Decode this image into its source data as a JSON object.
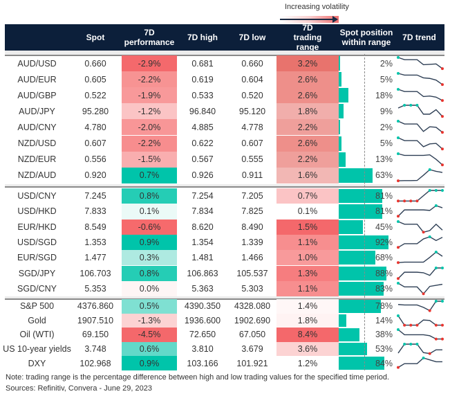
{
  "legend": {
    "label": "Increasing volatility"
  },
  "colors": {
    "header_bg": "#0c1f3a",
    "bar": "#00c4aa",
    "trend_line": "#2e3f55",
    "max_marker": "#00c4aa",
    "min_marker": "#e8352f"
  },
  "columns": [
    "",
    "Spot",
    "7D performance",
    "7D high",
    "7D low",
    "7D trading range",
    "Spot position within range",
    "7D trend"
  ],
  "groups": [
    {
      "rows": [
        {
          "name": "AUD/USD",
          "spot": "0.660",
          "perf": "-2.9%",
          "perf_color": "#f4696c",
          "high": "0.681",
          "low": "0.660",
          "range": "3.2%",
          "range_color": "#e8736d",
          "position": 2,
          "trend": [
            1,
            0.8,
            0.8,
            0.8,
            0.35,
            0.38,
            0.42,
            0
          ]
        },
        {
          "name": "AUD/EUR",
          "spot": "0.605",
          "perf": "-2.2%",
          "perf_color": "#f79393",
          "high": "0.619",
          "low": "0.604",
          "range": "2.6%",
          "range_color": "#ee8f8a",
          "position": 5,
          "trend": [
            1,
            0.85,
            0.85,
            0.85,
            0.6,
            0.55,
            0.4,
            0
          ]
        },
        {
          "name": "AUD/GBP",
          "spot": "0.522",
          "perf": "-1.9%",
          "perf_color": "#f8999a",
          "high": "0.533",
          "low": "0.520",
          "range": "2.6%",
          "range_color": "#ee8f8a",
          "position": 18,
          "trend": [
            1,
            0.8,
            0.8,
            0.8,
            0.35,
            0.4,
            0.3,
            0
          ]
        },
        {
          "name": "AUD/JPY",
          "spot": "95.280",
          "perf": "-1.2%",
          "perf_color": "#fbc4c5",
          "high": "96.840",
          "low": "95.120",
          "range": "1.8%",
          "range_color": "#f1aeab",
          "position": 9,
          "trend": [
            0.75,
            1,
            1,
            1,
            0.2,
            0.2,
            0.6,
            0
          ]
        },
        {
          "name": "AUD/CNY",
          "spot": "4.780",
          "perf": "-2.0%",
          "perf_color": "#f89697",
          "high": "4.885",
          "low": "4.778",
          "range": "2.2%",
          "range_color": "#ef9f9b",
          "position": 2,
          "trend": [
            1,
            0.75,
            0.75,
            0.75,
            0.08,
            0.5,
            0.45,
            0
          ]
        },
        {
          "name": "NZD/USD",
          "spot": "0.607",
          "perf": "-2.2%",
          "perf_color": "#f78d8e",
          "high": "0.622",
          "low": "0.607",
          "range": "2.6%",
          "range_color": "#ee8f8a",
          "position": 5,
          "trend": [
            1,
            0.75,
            0.75,
            0.75,
            0.2,
            0.45,
            0.5,
            0
          ]
        },
        {
          "name": "NZD/EUR",
          "spot": "0.556",
          "perf": "-1.5%",
          "perf_color": "#f9aeaf",
          "high": "0.567",
          "low": "0.555",
          "range": "2.2%",
          "range_color": "#ef9f9b",
          "position": 13,
          "trend": [
            1,
            0.85,
            0.85,
            0.85,
            0.85,
            0.9,
            0.5,
            0
          ]
        },
        {
          "name": "NZD/AUD",
          "spot": "0.920",
          "perf": "0.7%",
          "perf_color": "#00c4aa",
          "high": "0.926",
          "low": "0.911",
          "range": "1.6%",
          "range_color": "#f2b7b4",
          "position": 63,
          "trend": [
            0,
            0.02,
            0.02,
            0.03,
            0.5,
            1,
            0.85,
            0.75
          ]
        }
      ]
    },
    {
      "rows": [
        {
          "name": "USD/CNY",
          "spot": "7.245",
          "perf": "0.8%",
          "perf_color": "#25cdb5",
          "high": "7.254",
          "low": "7.205",
          "range": "0.7%",
          "range_color": "#fbc4c5",
          "position": 81,
          "trend": [
            0,
            0,
            0,
            0,
            0.5,
            1,
            1,
            1
          ]
        },
        {
          "name": "USD/HKD",
          "spot": "7.833",
          "perf": "0.1%",
          "perf_color": "#ebfaf7",
          "high": "7.834",
          "low": "7.825",
          "range": "0.1%",
          "range_color": "#ffffff",
          "position": 81,
          "trend": [
            0,
            0.6,
            0.6,
            0.6,
            0.6,
            0.55,
            1,
            0.8
          ]
        },
        {
          "name": "EUR/HKD",
          "spot": "8.549",
          "perf": "-0.6%",
          "perf_color": "#f66a6c",
          "high": "8.620",
          "low": "8.490",
          "range": "1.5%",
          "range_color": "#f4686b",
          "position": 45,
          "trend": [
            1,
            0.75,
            0.75,
            0.75,
            0,
            0.15,
            0.75,
            0.2
          ]
        },
        {
          "name": "USD/SGD",
          "spot": "1.353",
          "perf": "0.9%",
          "perf_color": "#00c4aa",
          "high": "1.354",
          "low": "1.339",
          "range": "1.1%",
          "range_color": "#f78e8f",
          "position": 92,
          "trend": [
            0,
            0.35,
            0.35,
            0.35,
            0.8,
            1,
            0.65,
            0.95
          ]
        },
        {
          "name": "EUR/SGD",
          "spot": "1.477",
          "perf": "0.3%",
          "perf_color": "#aeeae1",
          "high": "1.481",
          "low": "1.466",
          "range": "1.0%",
          "range_color": "#f89a9b",
          "position": 68,
          "trend": [
            0,
            0.05,
            0.05,
            0.05,
            0.05,
            0.5,
            1,
            0.6
          ]
        },
        {
          "name": "SGD/JPY",
          "spot": "106.703",
          "perf": "0.8%",
          "perf_color": "#25cdb5",
          "high": "106.863",
          "low": "105.537",
          "range": "1.3%",
          "range_color": "#f67d7f",
          "position": 88,
          "trend": [
            0,
            0.6,
            0.6,
            0.6,
            0.55,
            0.3,
            1,
            1
          ]
        },
        {
          "name": "SGD/CNY",
          "spot": "5.353",
          "perf": "0.0%",
          "perf_color": "#fef5f5",
          "high": "5.363",
          "low": "5.303",
          "range": "1.1%",
          "range_color": "#f78e8f",
          "position": 83,
          "trend": [
            1,
            0.65,
            0.65,
            0.65,
            0,
            0.7,
            0.8,
            0.9
          ]
        }
      ]
    },
    {
      "rows": [
        {
          "name": "S&P 500",
          "spot": "4376.860",
          "perf": "0.5%",
          "perf_color": "#7fe0d2",
          "high": "4390.350",
          "low": "4328.080",
          "range": "1.4%",
          "range_color": "#fff7f7",
          "position": 78,
          "trend": [
            0.65,
            0.6,
            0.6,
            0.6,
            0.35,
            0,
            1,
            1
          ]
        },
        {
          "name": "Gold",
          "spot": "1907.510",
          "perf": "-1.3%",
          "perf_color": "#fcd3d3",
          "high": "1936.600",
          "low": "1902.690",
          "range": "1.8%",
          "range_color": "#fff3f3",
          "position": 14,
          "trend": [
            1,
            0,
            0,
            0,
            0.55,
            0.5,
            0,
            0
          ]
        },
        {
          "name": "Oil (WTI)",
          "spot": "69.150",
          "perf": "-4.5%",
          "perf_color": "#f4686b",
          "high": "72.650",
          "low": "67.050",
          "range": "8.4%",
          "range_color": "#f4686b",
          "position": 38,
          "trend": [
            1,
            0.45,
            0.45,
            0.45,
            0.45,
            0.35,
            0,
            0
          ]
        },
        {
          "name": "US 10-year yields",
          "spot": "3.748",
          "perf": "0.6%",
          "perf_color": "#62d9c9",
          "high": "3.810",
          "low": "3.679",
          "range": "3.6%",
          "range_color": "#fcd3d3",
          "position": 53,
          "trend": [
            0.05,
            1,
            1,
            1,
            0.1,
            0,
            0.4,
            0.4
          ]
        },
        {
          "name": "DXY",
          "spot": "102.968",
          "perf": "0.9%",
          "perf_color": "#00c4aa",
          "high": "103.166",
          "low": "101.921",
          "range": "1.2%",
          "range_color": "#ffffff",
          "position": 84,
          "trend": [
            0,
            0.4,
            0.4,
            0.4,
            1,
            0.8,
            0.6,
            0.6
          ]
        }
      ]
    }
  ],
  "footer": {
    "note": "Note: trading range is the percentage difference between high and low trading values for the specified time period.",
    "sources": "Sources: Refinitiv, Convera - June 29, 2023"
  }
}
